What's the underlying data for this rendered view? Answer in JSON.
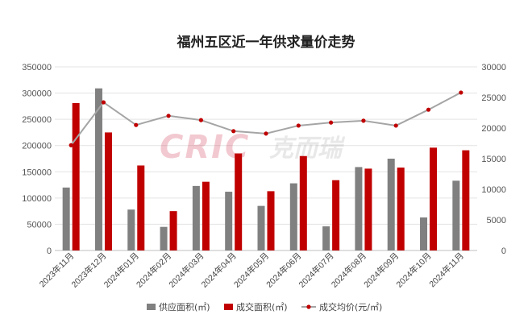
{
  "chart_data": {
    "type": "bar",
    "title": "福州五区近一年供求量价走势",
    "categories": [
      "2023年11月",
      "2023年12月",
      "2024年01月",
      "2024年02月",
      "2024年03月",
      "2024年04月",
      "2024年05月",
      "2024年06月",
      "2024年07月",
      "2024年08月",
      "2024年09月",
      "2024年10月",
      "2024年11月"
    ],
    "y_left": {
      "min": 0,
      "max": 350000,
      "ticks": [
        "0",
        "50000",
        "100000",
        "150000",
        "200000",
        "250000",
        "300000",
        "350000"
      ]
    },
    "y_right": {
      "min": 0,
      "max": 30000,
      "ticks": [
        "0",
        "5000",
        "10000",
        "15000",
        "20000",
        "25000",
        "30000"
      ]
    },
    "series": [
      {
        "name": "供应面积(㎡)",
        "kind": "bar",
        "axis": "left",
        "color": "#808080",
        "values": [
          120000,
          309000,
          78000,
          45000,
          123000,
          112000,
          85000,
          128000,
          46000,
          159000,
          175000,
          63000,
          133000
        ]
      },
      {
        "name": "成交面积(㎡)",
        "kind": "bar",
        "axis": "left",
        "color": "#c00000",
        "values": [
          281000,
          225000,
          162000,
          75000,
          131000,
          185000,
          113000,
          180000,
          134000,
          156000,
          158000,
          196000,
          191000
        ]
      },
      {
        "name": "成交均价(元/㎡)",
        "kind": "line",
        "axis": "right",
        "color": "#a5a5a5",
        "marker_color": "#c00000",
        "values": [
          17200,
          24200,
          20500,
          22000,
          21300,
          19500,
          19100,
          20400,
          20900,
          21200,
          20400,
          23000,
          25800
        ]
      }
    ],
    "legend_position": "bottom",
    "grid": true
  },
  "watermark": {
    "latin": "CRIC",
    "chinese": "克而瑞",
    "color": "#c8102e"
  }
}
